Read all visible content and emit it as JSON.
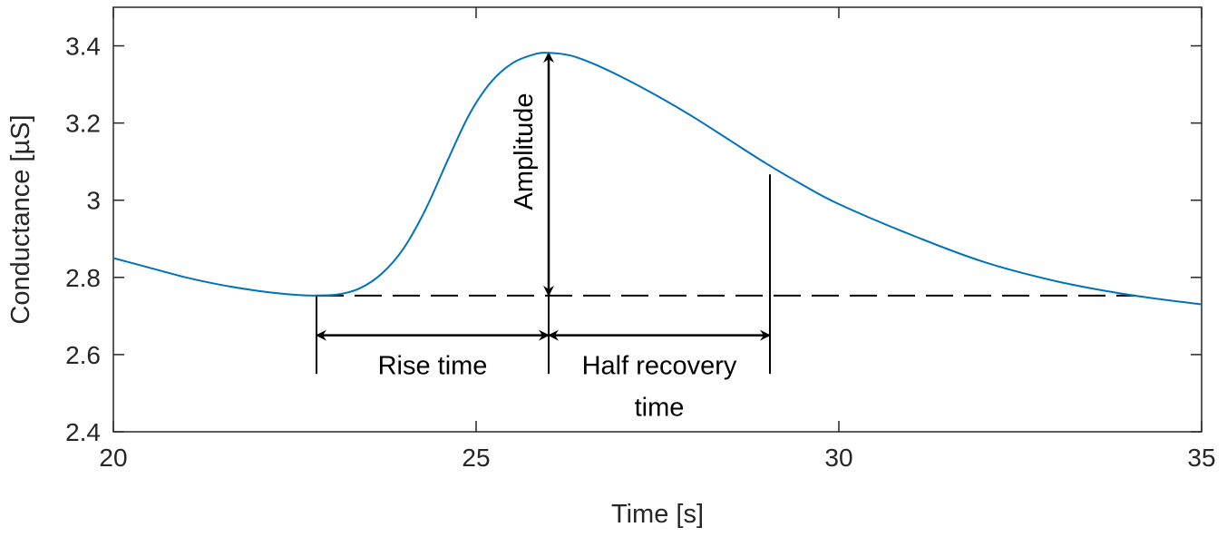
{
  "chart_data": {
    "type": "line",
    "title": "",
    "xlabel": "Time [s]",
    "ylabel": "Conductance [µS]",
    "xlim": [
      20,
      35
    ],
    "ylim": [
      2.4,
      3.5
    ],
    "xticks": [
      20,
      25,
      30,
      35
    ],
    "xtick_labels": [
      "20",
      "25",
      "30",
      "35"
    ],
    "yticks": [
      2.4,
      2.6,
      2.8,
      3.0,
      3.2,
      3.4
    ],
    "ytick_labels": [
      "2.4",
      "2.6",
      "2.8",
      "3",
      "3.2",
      "3.4"
    ],
    "grid": false,
    "series": [
      {
        "name": "Conductance",
        "color": "#0072BD",
        "x": [
          20,
          20.5,
          21,
          21.5,
          22,
          22.5,
          22.8,
          23.1,
          23.4,
          23.7,
          24,
          24.3,
          24.6,
          24.9,
          25.2,
          25.5,
          25.8,
          26,
          26.3,
          26.6,
          27,
          27.5,
          28,
          28.5,
          29,
          29.5,
          30,
          31,
          32,
          33,
          34,
          35
        ],
        "y": [
          2.85,
          2.825,
          2.8,
          2.78,
          2.765,
          2.755,
          2.753,
          2.756,
          2.772,
          2.81,
          2.875,
          2.975,
          3.1,
          3.22,
          3.305,
          3.355,
          3.378,
          3.382,
          3.375,
          3.355,
          3.32,
          3.27,
          3.215,
          3.155,
          3.095,
          3.04,
          2.99,
          2.91,
          2.84,
          2.79,
          2.755,
          2.73
        ]
      }
    ],
    "annotations": {
      "baseline": {
        "y": 2.753,
        "x_start": 22.8,
        "x_end": 34.1,
        "style": "dashed",
        "color": "#000000"
      },
      "onset_x": 22.8,
      "peak": {
        "x": 26.0,
        "y": 3.382
      },
      "half_recovery": {
        "x": 29.05,
        "y": 3.067
      },
      "guide_bottom_y": 2.55,
      "arrow_row_y": 2.65,
      "amplitude_label": "Amplitude",
      "rise_time_label": "Rise time",
      "half_recovery_label_line1": "Half recovery",
      "half_recovery_label_line2": "time"
    }
  }
}
